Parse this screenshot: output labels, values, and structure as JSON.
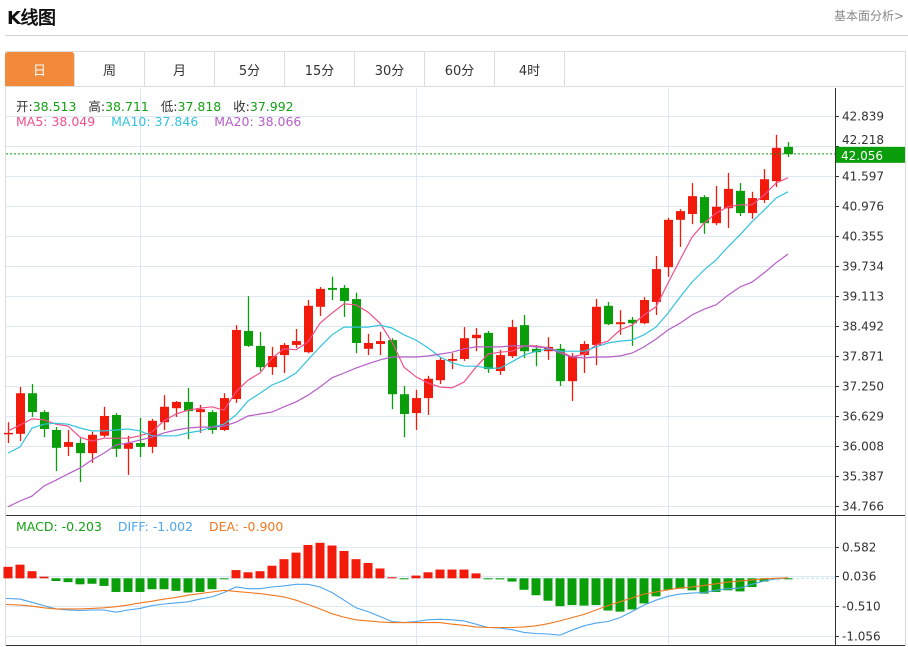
{
  "header": {
    "title": "K线图",
    "link": "基本面分析>"
  },
  "tabs": [
    {
      "label": "日",
      "active": true
    },
    {
      "label": "周",
      "active": false
    },
    {
      "label": "月",
      "active": false
    },
    {
      "label": "5分",
      "active": false
    },
    {
      "label": "15分",
      "active": false
    },
    {
      "label": "30分",
      "active": false
    },
    {
      "label": "60分",
      "active": false
    },
    {
      "label": "4时",
      "active": false
    }
  ],
  "ohlc_legend": {
    "open_label": "开:",
    "open": "38.513",
    "high_label": "高:",
    "high": "38.711",
    "low_label": "低:",
    "low": "37.818",
    "close_label": "收:",
    "close": "37.992"
  },
  "ma_legend": {
    "ma5": "MA5: 38.049",
    "ma10": "MA10: 37.846",
    "ma20": "MA20: 38.066"
  },
  "macd_legend": {
    "macd": "MACD: -0.203",
    "diff": "DIFF: -1.002",
    "dea": "DEA: -0.900"
  },
  "colors": {
    "up": "#f21a0a",
    "down": "#0a9e0a",
    "ma5": "#f0508a",
    "ma10": "#33c3dc",
    "ma20": "#b65ec6",
    "diff": "#4da6ee",
    "dea": "#f07820",
    "accent": "#f28a3c",
    "grid": "#dde8f0",
    "current": "#0a9e0a"
  },
  "chart_data": [
    {
      "type": "candlestick",
      "title": "",
      "ylim": [
        34.766,
        42.839
      ],
      "yticks": [
        "42.839",
        "42.218",
        "41.597",
        "40.976",
        "40.355",
        "39.734",
        "39.113",
        "38.492",
        "37.871",
        "37.250",
        "36.629",
        "36.008",
        "35.387",
        "34.766"
      ],
      "current_price": "42.056",
      "grid": true,
      "ohlc": [
        [
          36.26,
          36.5,
          36.07,
          36.28
        ],
        [
          36.26,
          37.23,
          36.11,
          37.1
        ],
        [
          37.1,
          37.29,
          36.61,
          36.71
        ],
        [
          36.71,
          36.75,
          36.19,
          36.36
        ],
        [
          36.34,
          36.4,
          35.49,
          35.97
        ],
        [
          35.99,
          36.34,
          35.8,
          36.09
        ],
        [
          36.07,
          36.17,
          35.26,
          35.86
        ],
        [
          35.86,
          36.3,
          35.66,
          36.24
        ],
        [
          36.22,
          36.82,
          36.19,
          36.63
        ],
        [
          36.65,
          36.69,
          35.78,
          35.95
        ],
        [
          35.95,
          36.22,
          35.41,
          36.07
        ],
        [
          36.07,
          36.59,
          35.78,
          35.99
        ],
        [
          35.99,
          36.57,
          35.86,
          36.53
        ],
        [
          36.5,
          37.06,
          36.34,
          36.82
        ],
        [
          36.79,
          36.94,
          36.61,
          36.92
        ],
        [
          36.92,
          37.21,
          36.15,
          36.73
        ],
        [
          36.71,
          36.86,
          36.28,
          36.77
        ],
        [
          36.71,
          36.75,
          36.26,
          36.34
        ],
        [
          36.34,
          37.1,
          36.32,
          37.0
        ],
        [
          36.98,
          38.51,
          36.9,
          38.41
        ],
        [
          38.39,
          39.11,
          38.06,
          38.08
        ],
        [
          38.08,
          38.37,
          37.56,
          37.64
        ],
        [
          37.64,
          38.06,
          37.48,
          37.87
        ],
        [
          37.89,
          38.14,
          37.52,
          38.1
        ],
        [
          38.1,
          38.43,
          38.04,
          38.18
        ],
        [
          37.95,
          39.03,
          37.93,
          38.91
        ],
        [
          38.89,
          39.3,
          38.7,
          39.26
        ],
        [
          39.28,
          39.51,
          39.03,
          39.24
        ],
        [
          39.28,
          39.34,
          38.68,
          39.01
        ],
        [
          39.05,
          39.18,
          37.93,
          38.14
        ],
        [
          38.02,
          38.33,
          37.89,
          38.14
        ],
        [
          38.12,
          38.37,
          37.89,
          38.18
        ],
        [
          38.2,
          38.24,
          36.77,
          37.08
        ],
        [
          37.08,
          37.25,
          36.19,
          36.67
        ],
        [
          36.69,
          37.17,
          36.34,
          37.0
        ],
        [
          37.0,
          37.46,
          36.65,
          37.4
        ],
        [
          37.37,
          37.85,
          37.29,
          37.79
        ],
        [
          37.77,
          37.93,
          37.6,
          37.81
        ],
        [
          37.81,
          38.47,
          37.77,
          38.24
        ],
        [
          38.24,
          38.45,
          37.97,
          38.31
        ],
        [
          38.35,
          38.39,
          37.52,
          37.6
        ],
        [
          37.56,
          38.0,
          37.48,
          37.89
        ],
        [
          37.87,
          38.62,
          37.83,
          38.47
        ],
        [
          38.51,
          38.72,
          37.83,
          37.97
        ],
        [
          38.02,
          38.1,
          37.66,
          37.95
        ],
        [
          37.97,
          38.26,
          37.79,
          38.06
        ],
        [
          38.02,
          38.12,
          37.25,
          37.35
        ],
        [
          37.35,
          37.93,
          36.94,
          37.87
        ],
        [
          37.89,
          38.18,
          37.52,
          38.12
        ],
        [
          38.1,
          39.05,
          37.68,
          38.89
        ],
        [
          38.91,
          38.99,
          38.51,
          38.53
        ],
        [
          38.53,
          38.82,
          38.31,
          38.57
        ],
        [
          38.62,
          38.68,
          38.08,
          38.55
        ],
        [
          38.55,
          39.09,
          38.53,
          39.03
        ],
        [
          38.99,
          39.94,
          38.72,
          39.67
        ],
        [
          39.71,
          40.73,
          39.51,
          40.69
        ],
        [
          40.69,
          40.91,
          40.13,
          40.87
        ],
        [
          40.81,
          41.45,
          40.6,
          41.18
        ],
        [
          41.16,
          41.2,
          40.4,
          40.62
        ],
        [
          40.62,
          41.39,
          40.58,
          40.96
        ],
        [
          40.93,
          41.66,
          40.52,
          41.33
        ],
        [
          41.29,
          41.45,
          40.77,
          40.83
        ],
        [
          40.83,
          41.27,
          40.71,
          41.14
        ],
        [
          41.1,
          41.74,
          41.04,
          41.53
        ],
        [
          41.49,
          42.45,
          41.37,
          42.18
        ],
        [
          42.2,
          42.3,
          41.99,
          42.05
        ]
      ],
      "ma5": [
        36.32,
        36.44,
        36.57,
        36.55,
        36.46,
        36.42,
        36.19,
        36.11,
        36.17,
        36.17,
        36.17,
        36.22,
        36.3,
        36.53,
        36.67,
        36.75,
        36.79,
        36.82,
        36.75,
        37.13,
        37.37,
        37.52,
        37.83,
        38.02,
        38.0,
        38.16,
        38.55,
        38.76,
        38.95,
        38.93,
        38.78,
        38.55,
        38.16,
        37.64,
        37.44,
        37.31,
        37.23,
        37.21,
        37.33,
        37.64,
        37.91,
        37.95,
        37.97,
        38.08,
        38.08,
        38.04,
        37.97,
        37.85,
        37.91,
        38.1,
        38.18,
        38.41,
        38.51,
        38.72,
        38.89,
        39.38,
        39.86,
        40.33,
        40.62,
        40.83,
        40.96,
        41.0,
        41.0,
        41.2,
        41.45,
        41.56
      ],
      "ma10": [
        35.86,
        35.99,
        36.38,
        36.46,
        36.48,
        36.46,
        36.38,
        36.32,
        36.32,
        36.34,
        36.36,
        36.32,
        36.22,
        36.22,
        36.22,
        36.28,
        36.32,
        36.4,
        36.46,
        36.65,
        36.94,
        37.1,
        37.27,
        37.37,
        37.52,
        37.79,
        38.06,
        38.31,
        38.47,
        38.47,
        38.47,
        38.51,
        38.45,
        38.31,
        38.2,
        38.04,
        37.85,
        37.73,
        37.66,
        37.66,
        37.62,
        37.62,
        37.75,
        37.89,
        37.97,
        38.02,
        37.97,
        37.97,
        37.97,
        38.06,
        38.14,
        38.18,
        38.2,
        38.31,
        38.47,
        38.76,
        39.09,
        39.4,
        39.65,
        39.86,
        40.13,
        40.38,
        40.65,
        40.89,
        41.14,
        41.27
      ],
      "ma20": [
        34.75,
        34.87,
        34.97,
        35.18,
        35.3,
        35.43,
        35.55,
        35.72,
        35.86,
        36.03,
        36.07,
        36.13,
        36.19,
        36.28,
        36.34,
        36.38,
        36.4,
        36.4,
        36.42,
        36.5,
        36.63,
        36.67,
        36.71,
        36.82,
        36.92,
        37.06,
        37.23,
        37.42,
        37.52,
        37.62,
        37.71,
        37.79,
        37.85,
        37.85,
        37.85,
        37.87,
        37.91,
        37.95,
        38.02,
        38.06,
        38.06,
        38.06,
        38.08,
        38.08,
        38.06,
        38.04,
        37.93,
        37.85,
        37.83,
        37.85,
        37.85,
        37.87,
        37.93,
        38.06,
        38.22,
        38.41,
        38.55,
        38.72,
        38.84,
        38.93,
        39.13,
        39.3,
        39.4,
        39.59,
        39.8,
        39.98
      ]
    },
    {
      "type": "bar",
      "title": "MACD",
      "ylim": [
        -1.056,
        0.582
      ],
      "yticks": [
        "0.582",
        "0.036",
        "-0.510",
        "-1.056"
      ],
      "grid": true,
      "macd": [
        0.21,
        0.25,
        0.13,
        0.03,
        -0.05,
        -0.07,
        -0.11,
        -0.1,
        -0.14,
        -0.25,
        -0.25,
        -0.25,
        -0.2,
        -0.2,
        -0.23,
        -0.26,
        -0.25,
        -0.2,
        -0.01,
        0.15,
        0.11,
        0.13,
        0.23,
        0.35,
        0.47,
        0.61,
        0.65,
        0.6,
        0.5,
        0.35,
        0.28,
        0.18,
        0.02,
        -0.01,
        0.05,
        0.11,
        0.16,
        0.16,
        0.16,
        0.09,
        -0.01,
        -0.02,
        -0.06,
        -0.21,
        -0.31,
        -0.41,
        -0.51,
        -0.49,
        -0.5,
        -0.49,
        -0.59,
        -0.61,
        -0.57,
        -0.46,
        -0.33,
        -0.21,
        -0.19,
        -0.22,
        -0.28,
        -0.25,
        -0.22,
        -0.24,
        -0.16,
        -0.06,
        -0.01,
        -0.01
      ],
      "diff": [
        -0.37,
        -0.38,
        -0.44,
        -0.5,
        -0.56,
        -0.58,
        -0.59,
        -0.58,
        -0.58,
        -0.62,
        -0.58,
        -0.55,
        -0.5,
        -0.47,
        -0.45,
        -0.43,
        -0.38,
        -0.34,
        -0.26,
        -0.16,
        -0.19,
        -0.19,
        -0.16,
        -0.14,
        -0.11,
        -0.11,
        -0.16,
        -0.26,
        -0.4,
        -0.54,
        -0.61,
        -0.7,
        -0.79,
        -0.81,
        -0.79,
        -0.76,
        -0.75,
        -0.76,
        -0.78,
        -0.84,
        -0.9,
        -0.91,
        -0.94,
        -0.99,
        -1.01,
        -1.02,
        -1.04,
        -0.95,
        -0.87,
        -0.82,
        -0.79,
        -0.72,
        -0.61,
        -0.49,
        -0.4,
        -0.33,
        -0.29,
        -0.27,
        -0.26,
        -0.22,
        -0.19,
        -0.18,
        -0.11,
        -0.05,
        -0.01,
        0.01
      ],
      "dea": [
        -0.48,
        -0.49,
        -0.51,
        -0.54,
        -0.56,
        -0.56,
        -0.56,
        -0.55,
        -0.54,
        -0.52,
        -0.49,
        -0.45,
        -0.42,
        -0.38,
        -0.35,
        -0.31,
        -0.28,
        -0.25,
        -0.22,
        -0.24,
        -0.26,
        -0.28,
        -0.31,
        -0.34,
        -0.4,
        -0.48,
        -0.56,
        -0.65,
        -0.71,
        -0.76,
        -0.78,
        -0.8,
        -0.81,
        -0.81,
        -0.81,
        -0.81,
        -0.81,
        -0.84,
        -0.86,
        -0.89,
        -0.9,
        -0.9,
        -0.9,
        -0.89,
        -0.87,
        -0.83,
        -0.78,
        -0.72,
        -0.66,
        -0.58,
        -0.5,
        -0.43,
        -0.36,
        -0.29,
        -0.25,
        -0.21,
        -0.18,
        -0.16,
        -0.13,
        -0.1,
        -0.07,
        -0.05,
        -0.03,
        -0.01,
        0.0,
        0.01
      ]
    }
  ]
}
